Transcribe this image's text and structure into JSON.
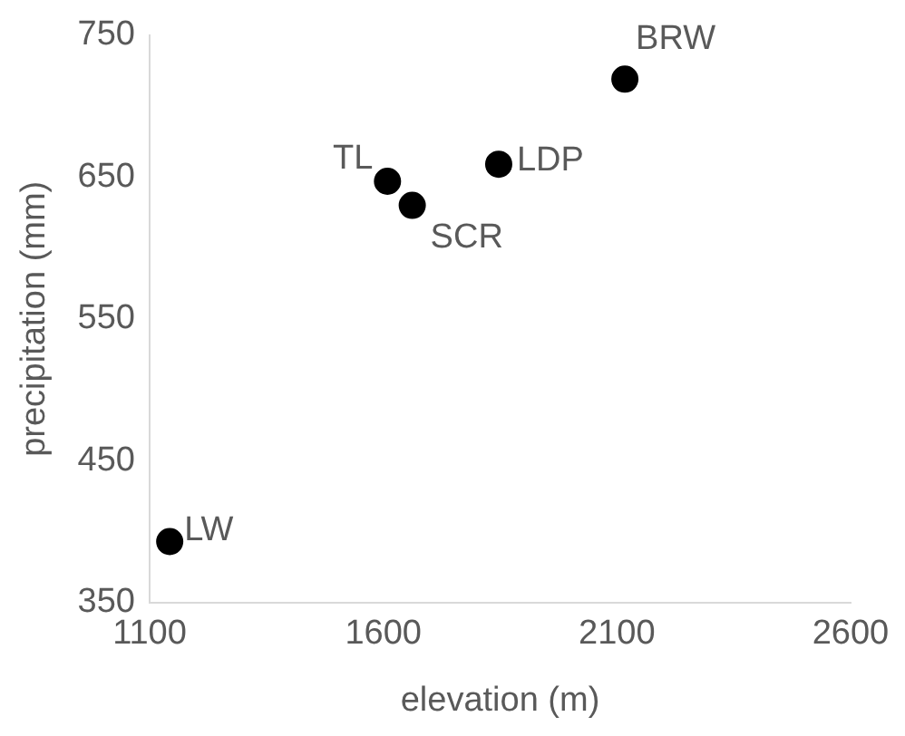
{
  "chart_data": {
    "type": "scatter",
    "xlabel": "elevation (m)",
    "ylabel": "precipitation (mm)",
    "x": [
      1143,
      1609,
      1662,
      1847,
      2117
    ],
    "values": [
      393,
      647,
      630,
      659,
      719
    ],
    "color": "#000000",
    "marker": "circle",
    "xlim": [
      1100,
      2600
    ],
    "xticks": [
      1100,
      1600,
      2100,
      2600
    ],
    "ylim": [
      350,
      750
    ],
    "yticks": [
      350,
      450,
      550,
      650,
      750
    ],
    "grid": false,
    "legend": false,
    "annotations": [
      {
        "text": "LW",
        "x": 1143,
        "y": 393
      },
      {
        "text": "TL",
        "x": 1609,
        "y": 647
      },
      {
        "text": "SCR",
        "x": 1662,
        "y": 630
      },
      {
        "text": "LDP",
        "x": 1847,
        "y": 659
      },
      {
        "text": "BRW",
        "x": 2117,
        "y": 719
      }
    ]
  }
}
